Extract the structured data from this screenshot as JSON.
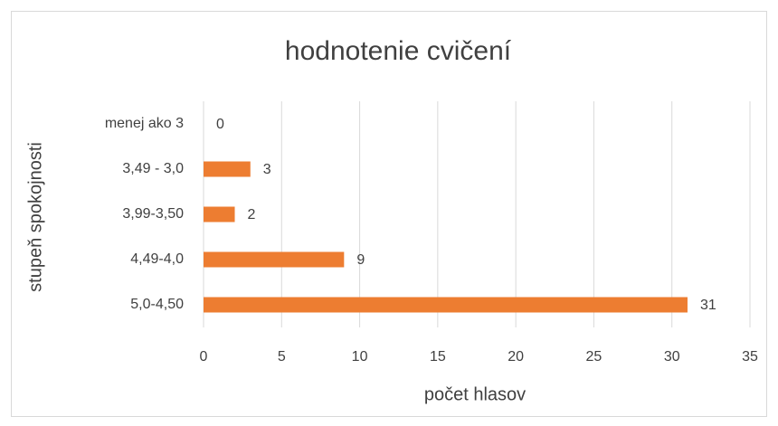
{
  "chart_data": {
    "type": "barh",
    "title": "hodnotenie cvičení",
    "xlabel": "počet hlasov",
    "ylabel": "stupeň spokojnosti",
    "categories": [
      "menej ako 3",
      "3,49 - 3,0",
      "3,99-3,50",
      "4,49-4,0",
      "5,0-4,50"
    ],
    "values": [
      0,
      3,
      2,
      9,
      31
    ],
    "color": "#ed7d31",
    "xlim": [
      0,
      35
    ],
    "xticks": [
      0,
      5,
      10,
      15,
      20,
      25,
      30,
      35
    ],
    "grid": true
  }
}
